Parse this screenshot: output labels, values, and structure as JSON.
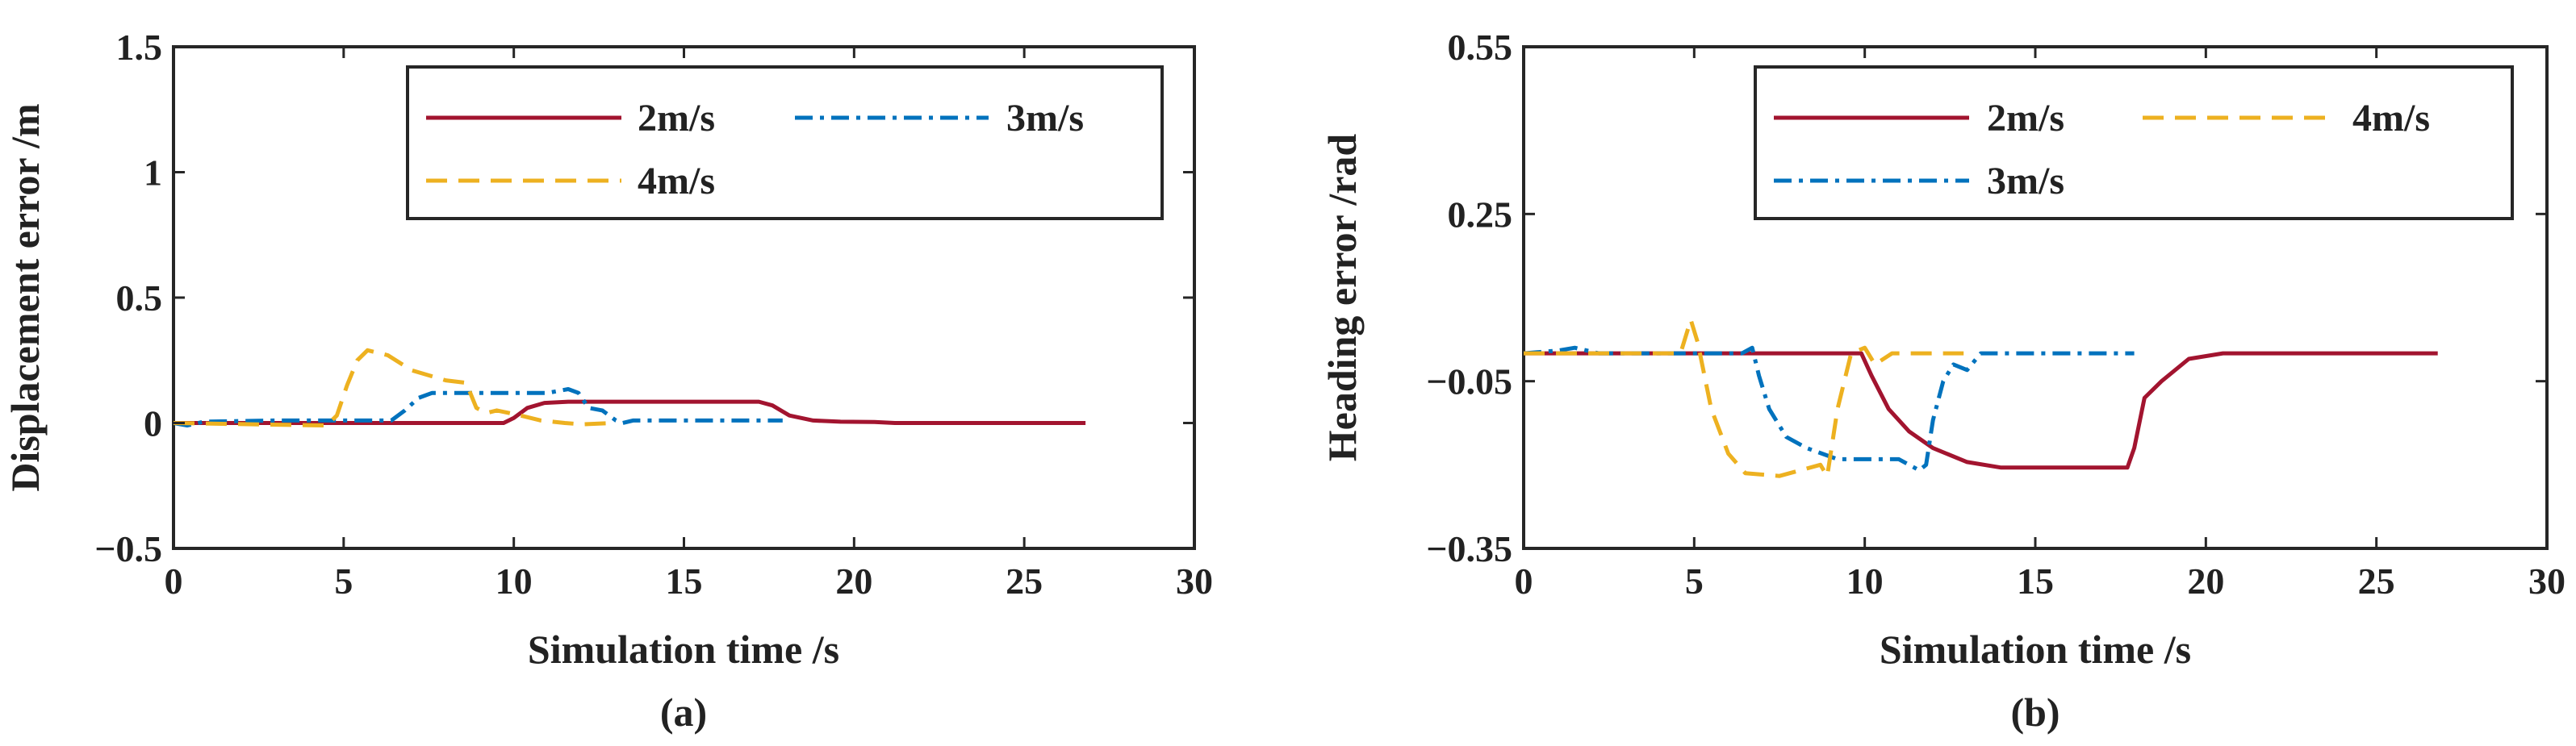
{
  "chart_data": [
    {
      "type": "line",
      "panel_label": "(a)",
      "xlabel": "Simulation time /s",
      "ylabel": "Displacement error /m",
      "xlim": [
        0,
        30
      ],
      "ylim": [
        -0.5,
        1.5
      ],
      "xticks": [
        0,
        5,
        10,
        15,
        20,
        25,
        30
      ],
      "xtick_labels": [
        "0",
        "5",
        "10",
        "15",
        "20",
        "25",
        "30"
      ],
      "yticks": [
        -0.5,
        0,
        0.5,
        1,
        1.5
      ],
      "ytick_labels": [
        "−0.5",
        "0",
        "0.5",
        "1",
        "1.5"
      ],
      "grid": false,
      "legend_position": "top-right",
      "series": [
        {
          "name": "2m/s",
          "color": "#A2142F",
          "dash": "solid",
          "points": [
            [
              0,
              0
            ],
            [
              9.7,
              0
            ],
            [
              10.0,
              0.02
            ],
            [
              10.4,
              0.06
            ],
            [
              10.9,
              0.08
            ],
            [
              11.6,
              0.085
            ],
            [
              17.2,
              0.085
            ],
            [
              17.6,
              0.07
            ],
            [
              18.1,
              0.03
            ],
            [
              18.8,
              0.01
            ],
            [
              19.6,
              0.005
            ],
            [
              20.6,
              0.004
            ],
            [
              21.2,
              0.0
            ],
            [
              26.8,
              0.0
            ]
          ]
        },
        {
          "name": "3m/s",
          "color": "#0072BD",
          "dash": "dashdot",
          "points": [
            [
              0,
              0
            ],
            [
              0.4,
              -0.01
            ],
            [
              0.9,
              0.005
            ],
            [
              3.0,
              0.01
            ],
            [
              6.4,
              0.01
            ],
            [
              6.8,
              0.05
            ],
            [
              7.2,
              0.1
            ],
            [
              7.6,
              0.12
            ],
            [
              9.0,
              0.12
            ],
            [
              11.0,
              0.12
            ],
            [
              11.6,
              0.135
            ],
            [
              11.9,
              0.12
            ],
            [
              12.2,
              0.06
            ],
            [
              12.6,
              0.05
            ],
            [
              13.0,
              0.01
            ],
            [
              13.2,
              0.0
            ],
            [
              13.5,
              0.01
            ],
            [
              17.9,
              0.01
            ]
          ]
        },
        {
          "name": "4m/s",
          "color": "#EDB120",
          "dash": "dashed",
          "points": [
            [
              0,
              0
            ],
            [
              4.5,
              -0.01
            ],
            [
              4.8,
              0.03
            ],
            [
              5.1,
              0.15
            ],
            [
              5.4,
              0.25
            ],
            [
              5.7,
              0.29
            ],
            [
              6.3,
              0.27
            ],
            [
              7.0,
              0.21
            ],
            [
              8.0,
              0.17
            ],
            [
              8.6,
              0.16
            ],
            [
              8.9,
              0.06
            ],
            [
              9.2,
              0.04
            ],
            [
              9.5,
              0.05
            ],
            [
              10.2,
              0.03
            ],
            [
              10.8,
              0.01
            ],
            [
              11.5,
              0.0
            ],
            [
              12.0,
              -0.005
            ],
            [
              12.9,
              0.0
            ]
          ]
        }
      ]
    },
    {
      "type": "line",
      "panel_label": "(b)",
      "xlabel": "Simulation time /s",
      "ylabel": "Heading error /rad",
      "xlim": [
        0,
        30
      ],
      "ylim": [
        -0.35,
        0.55
      ],
      "xticks": [
        0,
        5,
        10,
        15,
        20,
        25,
        30
      ],
      "xtick_labels": [
        "0",
        "5",
        "10",
        "15",
        "20",
        "25",
        "30"
      ],
      "yticks": [
        -0.35,
        -0.05,
        0.25,
        0.55
      ],
      "ytick_labels": [
        "−0.35",
        "−0.05",
        "0.25",
        "0.55"
      ],
      "grid": false,
      "legend_position": "top-right",
      "series": [
        {
          "name": "2m/s",
          "color": "#A2142F",
          "dash": "solid",
          "points": [
            [
              0,
              0.0
            ],
            [
              9.9,
              0.0
            ],
            [
              10.2,
              -0.04
            ],
            [
              10.7,
              -0.1
            ],
            [
              11.3,
              -0.14
            ],
            [
              12.0,
              -0.17
            ],
            [
              13.0,
              -0.195
            ],
            [
              14.0,
              -0.205
            ],
            [
              17.5,
              -0.205
            ],
            [
              17.7,
              -0.205
            ],
            [
              17.9,
              -0.17
            ],
            [
              18.2,
              -0.08
            ],
            [
              18.7,
              -0.05
            ],
            [
              19.5,
              -0.01
            ],
            [
              20.5,
              0.0
            ],
            [
              26.8,
              0.0
            ]
          ]
        },
        {
          "name": "3m/s",
          "color": "#0072BD",
          "dash": "dashdot",
          "points": [
            [
              0,
              0.0
            ],
            [
              1.0,
              0.005
            ],
            [
              1.5,
              0.01
            ],
            [
              2.2,
              0.0
            ],
            [
              6.4,
              0.0
            ],
            [
              6.7,
              0.01
            ],
            [
              6.9,
              -0.04
            ],
            [
              7.2,
              -0.1
            ],
            [
              7.7,
              -0.15
            ],
            [
              8.3,
              -0.17
            ],
            [
              9.2,
              -0.19
            ],
            [
              11.0,
              -0.19
            ],
            [
              11.6,
              -0.21
            ],
            [
              11.8,
              -0.2
            ],
            [
              12.0,
              -0.12
            ],
            [
              12.3,
              -0.05
            ],
            [
              12.6,
              -0.02
            ],
            [
              13.0,
              -0.03
            ],
            [
              13.4,
              0.0
            ],
            [
              17.9,
              0.0
            ]
          ]
        },
        {
          "name": "4m/s",
          "color": "#EDB120",
          "dash": "dashed",
          "points": [
            [
              0,
              0.0
            ],
            [
              4.6,
              0.0
            ],
            [
              4.9,
              0.06
            ],
            [
              5.1,
              0.02
            ],
            [
              5.5,
              -0.1
            ],
            [
              6.0,
              -0.18
            ],
            [
              6.5,
              -0.215
            ],
            [
              7.5,
              -0.22
            ],
            [
              8.7,
              -0.2
            ],
            [
              8.9,
              -0.22
            ],
            [
              9.2,
              -0.1
            ],
            [
              9.6,
              0.0
            ],
            [
              10.0,
              0.01
            ],
            [
              10.3,
              -0.02
            ],
            [
              10.8,
              0.0
            ],
            [
              12.9,
              0.0
            ]
          ]
        }
      ]
    }
  ]
}
